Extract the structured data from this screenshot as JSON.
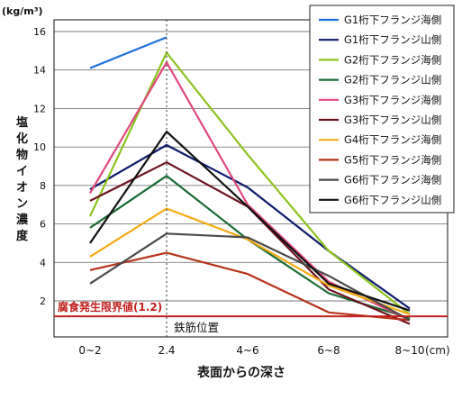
{
  "chart_data": {
    "type": "line",
    "unit_label": "(kg/m³)",
    "ylabel": "塩化物イオン濃度",
    "xlabel": "表面からの深さ",
    "x_unit": "(cm)",
    "categories": [
      "0~2",
      "2.4",
      "4~6",
      "6~8",
      "8~10"
    ],
    "ylim": [
      0,
      16.5
    ],
    "yticks": [
      2,
      4,
      6,
      8,
      10,
      12,
      14,
      16
    ],
    "grid": true,
    "legend_position": "top-right",
    "threshold": {
      "label": "腐食発生限界値(1.2)",
      "value": 1.2,
      "color": "#c0201e"
    },
    "marker": {
      "label": "鉄筋位置",
      "x": "2.4"
    },
    "series": [
      {
        "name": "G1桁下フランジ海側",
        "color": "#1f6fe0",
        "values": [
          14.1,
          15.7,
          null,
          null,
          null
        ]
      },
      {
        "name": "G1桁下フランジ山側",
        "color": "#0d1a6b",
        "values": [
          7.8,
          10.1,
          7.9,
          4.6,
          1.6
        ]
      },
      {
        "name": "G2桁下フランジ海側",
        "color": "#8cc21e",
        "values": [
          6.4,
          14.9,
          9.6,
          4.6,
          1.3
        ]
      },
      {
        "name": "G2桁下フランジ山側",
        "color": "#1b6b34",
        "values": [
          5.8,
          8.5,
          5.2,
          2.4,
          1.1
        ]
      },
      {
        "name": "G3桁下フランジ海側",
        "color": "#e0487c",
        "values": [
          7.6,
          14.4,
          7.0,
          3.0,
          1.0
        ]
      },
      {
        "name": "G3桁下フランジ山側",
        "color": "#6d1220",
        "values": [
          7.2,
          9.2,
          6.9,
          2.6,
          0.8
        ]
      },
      {
        "name": "G4桁下フランジ海側",
        "color": "#f2aa12",
        "values": [
          4.3,
          6.8,
          5.2,
          2.8,
          1.3
        ]
      },
      {
        "name": "G5桁下フランジ海側",
        "color": "#b7321a",
        "values": [
          3.6,
          4.5,
          3.4,
          1.4,
          1.0
        ]
      },
      {
        "name": "G6桁下フランジ海側",
        "color": "#4a4a4a",
        "values": [
          2.9,
          5.5,
          5.3,
          3.3,
          1.0
        ]
      },
      {
        "name": "G6桁下フランジ山側",
        "color": "#111111",
        "values": [
          5.0,
          10.8,
          6.9,
          2.9,
          1.5
        ]
      }
    ]
  }
}
